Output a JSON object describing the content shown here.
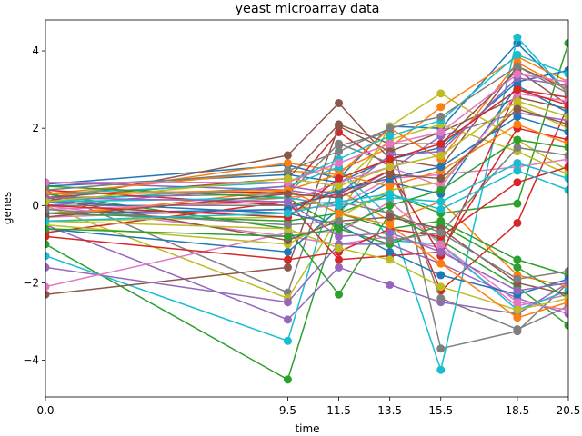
{
  "chart_data": {
    "type": "line",
    "title": "yeast microarray data",
    "xlabel": "time",
    "ylabel": "genes",
    "x": [
      0.0,
      9.5,
      11.5,
      13.5,
      15.5,
      18.5,
      20.5
    ],
    "x_tick_labels": [
      "0.0",
      "9.5",
      "11.5",
      "13.5",
      "15.5",
      "18.5",
      "20.5"
    ],
    "y_ticks": [
      -4,
      -2,
      0,
      2,
      4
    ],
    "y_tick_labels": [
      "−4",
      "−2",
      "0",
      "2",
      "4"
    ],
    "xlim": [
      0.0,
      20.5
    ],
    "ylim": [
      -4.95,
      4.8
    ],
    "grid": false,
    "colors": [
      "#1f77b4",
      "#ff7f0e",
      "#2ca02c",
      "#d62728",
      "#9467bd",
      "#8c564b",
      "#e377c2",
      "#7f7f7f",
      "#bcbd22",
      "#17becf"
    ],
    "series": [
      {
        "values": [
          0.55,
          1.05,
          0.7,
          2.05,
          2.0,
          4.2,
          2.9
        ]
      },
      {
        "values": [
          0.2,
          1.1,
          0.9,
          1.5,
          2.55,
          3.85,
          3.2
        ]
      },
      {
        "values": [
          -1.0,
          -4.5,
          -0.2,
          0.3,
          -0.2,
          0.05,
          4.2
        ]
      },
      {
        "values": [
          0.3,
          0.35,
          1.9,
          1.0,
          -2.2,
          -0.45,
          2.6
        ]
      },
      {
        "values": [
          -0.5,
          -2.95,
          -1.6,
          -2.05,
          -2.5,
          -2.8,
          -2.0
        ]
      },
      {
        "values": [
          0.1,
          1.3,
          2.65,
          1.2,
          1.0,
          3.6,
          3.0
        ]
      },
      {
        "values": [
          -0.3,
          -0.1,
          0.0,
          0.7,
          0.8,
          1.0,
          1.2
        ]
      },
      {
        "values": [
          0.4,
          -2.25,
          1.55,
          1.9,
          -3.7,
          -3.25,
          -2.0
        ]
      },
      {
        "values": [
          0.0,
          -2.4,
          -0.3,
          2.05,
          2.9,
          1.7,
          0.9
        ]
      },
      {
        "values": [
          -1.3,
          -3.5,
          0.95,
          -0.3,
          -4.25,
          4.35,
          2.9
        ]
      },
      {
        "values": [
          0.5,
          0.8,
          0.6,
          1.2,
          1.5,
          3.2,
          3.5
        ]
      },
      {
        "values": [
          -0.2,
          0.2,
          0.4,
          -0.4,
          0.1,
          -1.8,
          -2.1
        ]
      },
      {
        "values": [
          0.3,
          -0.6,
          -2.3,
          -0.2,
          -0.9,
          -2.1,
          -3.1
        ]
      },
      {
        "values": [
          -0.7,
          0.1,
          -1.4,
          -1.3,
          -1.2,
          2.0,
          1.7
        ]
      },
      {
        "values": [
          0.6,
          0.4,
          0.2,
          0.9,
          1.8,
          2.4,
          2.2
        ]
      },
      {
        "values": [
          -2.3,
          -1.6,
          2.05,
          1.4,
          1.9,
          2.8,
          2.5
        ]
      },
      {
        "values": [
          0.0,
          -0.8,
          -1.0,
          -0.8,
          -1.1,
          -2.6,
          -2.3
        ]
      },
      {
        "values": [
          0.2,
          0.3,
          1.6,
          1.1,
          -2.4,
          -3.2,
          -2.6
        ]
      },
      {
        "values": [
          -0.4,
          -0.3,
          0.5,
          1.7,
          2.1,
          1.4,
          0.8
        ]
      },
      {
        "values": [
          0.1,
          0.5,
          1.0,
          -0.9,
          -1.0,
          -2.7,
          -2.2
        ]
      },
      {
        "values": [
          -0.6,
          -1.2,
          -0.1,
          0.6,
          0.3,
          3.1,
          2.4
        ]
      },
      {
        "values": [
          0.3,
          0.9,
          0.8,
          2.0,
          1.2,
          3.7,
          3.0
        ]
      },
      {
        "values": [
          -0.2,
          -0.4,
          -0.2,
          -0.6,
          -0.4,
          -1.4,
          -1.8
        ]
      },
      {
        "values": [
          0.4,
          0.0,
          0.3,
          0.9,
          -1.3,
          3.0,
          2.8
        ]
      },
      {
        "values": [
          -1.6,
          -2.5,
          -1.0,
          -1.0,
          -1.5,
          -2.4,
          -2.8
        ]
      },
      {
        "values": [
          0.2,
          0.7,
          2.1,
          1.6,
          1.6,
          3.5,
          2.6
        ]
      },
      {
        "values": [
          -2.1,
          -0.7,
          -0.7,
          0.1,
          -1.0,
          -2.5,
          -2.7
        ]
      },
      {
        "values": [
          0.0,
          0.0,
          0.1,
          -0.2,
          -0.7,
          1.5,
          1.3
        ]
      },
      {
        "values": [
          -0.5,
          -1.0,
          -0.3,
          0.4,
          0.6,
          2.6,
          2.0
        ]
      },
      {
        "values": [
          0.3,
          0.6,
          1.2,
          1.8,
          2.2,
          3.9,
          3.4
        ]
      },
      {
        "values": [
          0.1,
          -0.2,
          -0.5,
          -1.2,
          -1.8,
          -2.3,
          -1.9
        ]
      },
      {
        "values": [
          -0.3,
          0.4,
          0.8,
          0.5,
          0.9,
          2.1,
          1.6
        ]
      },
      {
        "values": [
          0.5,
          0.2,
          -0.6,
          -1.0,
          -0.5,
          -1.6,
          -2.4
        ]
      },
      {
        "values": [
          -0.8,
          -1.4,
          -1.2,
          -0.6,
          -0.8,
          0.6,
          1.0
        ]
      },
      {
        "values": [
          0.0,
          0.5,
          0.3,
          1.3,
          1.4,
          3.3,
          3.1
        ]
      },
      {
        "values": [
          0.2,
          -0.9,
          -0.4,
          -0.3,
          -0.6,
          -2.0,
          -2.3
        ]
      },
      {
        "values": [
          -0.1,
          0.1,
          0.6,
          1.0,
          0.5,
          2.9,
          2.7
        ]
      },
      {
        "values": [
          0.4,
          0.9,
          1.4,
          2.0,
          2.3,
          3.6,
          2.9
        ]
      },
      {
        "values": [
          -0.4,
          -0.6,
          -1.1,
          -1.4,
          -2.1,
          -2.7,
          -2.4
        ]
      },
      {
        "values": [
          0.1,
          0.2,
          0.0,
          0.2,
          0.1,
          1.1,
          0.7
        ]
      },
      {
        "values": [
          -0.2,
          -0.1,
          0.4,
          0.7,
          1.0,
          2.3,
          1.9
        ]
      },
      {
        "values": [
          0.3,
          0.4,
          -0.2,
          -0.5,
          -1.5,
          -2.9,
          -2.5
        ]
      },
      {
        "values": [
          -0.6,
          -0.8,
          -0.6,
          0.0,
          0.4,
          1.7,
          1.5
        ]
      },
      {
        "values": [
          0.0,
          -0.3,
          0.7,
          1.2,
          1.6,
          3.0,
          2.6
        ]
      },
      {
        "values": [
          0.2,
          0.1,
          -0.8,
          -0.7,
          -1.2,
          -2.2,
          -2.0
        ]
      },
      {
        "values": [
          -0.3,
          0.3,
          0.2,
          0.8,
          0.7,
          2.5,
          2.1
        ]
      },
      {
        "values": [
          0.6,
          0.6,
          1.1,
          1.6,
          1.9,
          3.4,
          3.2
        ]
      },
      {
        "values": [
          -0.1,
          -0.5,
          -0.4,
          -0.9,
          -0.7,
          -1.9,
          -1.7
        ]
      },
      {
        "values": [
          0.1,
          0.7,
          0.5,
          1.0,
          1.3,
          2.7,
          2.3
        ]
      },
      {
        "values": [
          -0.4,
          -0.2,
          0.1,
          0.3,
          -0.1,
          0.9,
          0.4
        ]
      }
    ]
  }
}
